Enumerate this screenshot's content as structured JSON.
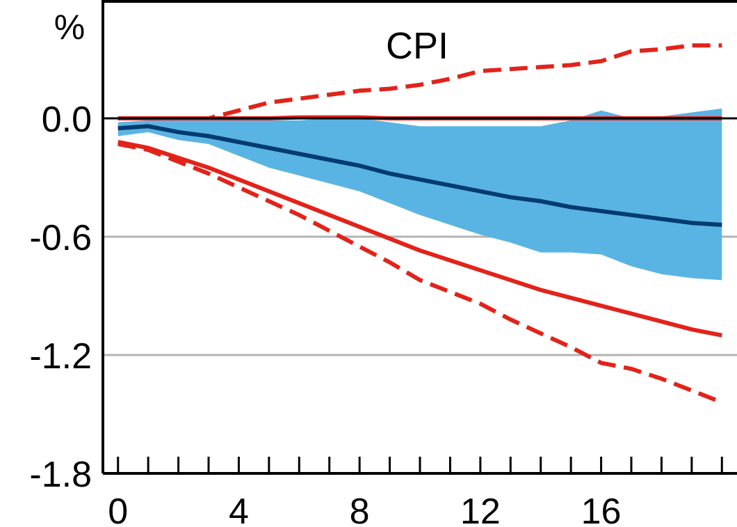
{
  "chart_data": {
    "type": "line",
    "title": "CPI",
    "unit": "%",
    "xlabel": "",
    "ylabel": "",
    "x": [
      0,
      1,
      2,
      3,
      4,
      5,
      6,
      7,
      8,
      9,
      10,
      11,
      12,
      13,
      14,
      15,
      16,
      17,
      18,
      19,
      20
    ],
    "xlim": [
      -0.5,
      20.5
    ],
    "ylim": [
      -1.8,
      0.6
    ],
    "x_ticks": [
      0,
      4,
      8,
      12,
      16
    ],
    "x_tick_labels": [
      "0",
      "4",
      "8",
      "12",
      "16"
    ],
    "y_ticks": [
      0.0,
      -0.6,
      -1.2,
      -1.8
    ],
    "y_tick_labels": [
      "0.0",
      "-0.6",
      "-1.2",
      "-1.8"
    ],
    "grid": "horizontal",
    "band": {
      "upper": [
        -0.02,
        -0.01,
        -0.01,
        -0.01,
        -0.01,
        -0.01,
        -0.01,
        0.0,
        0.0,
        -0.02,
        -0.04,
        -0.04,
        -0.04,
        -0.04,
        -0.04,
        -0.01,
        0.04,
        0.0,
        0.01,
        0.03,
        0.05
      ],
      "lower": [
        -0.09,
        -0.07,
        -0.11,
        -0.13,
        -0.19,
        -0.25,
        -0.29,
        -0.33,
        -0.37,
        -0.43,
        -0.49,
        -0.54,
        -0.59,
        -0.63,
        -0.68,
        -0.68,
        -0.69,
        -0.75,
        -0.79,
        -0.81,
        -0.82
      ],
      "color": "#5ab4e3"
    },
    "series": [
      {
        "color": "#003b6f",
        "style": "solid",
        "values": [
          -0.05,
          -0.04,
          -0.07,
          -0.09,
          -0.12,
          -0.15,
          -0.18,
          -0.21,
          -0.24,
          -0.28,
          -0.31,
          -0.34,
          -0.37,
          -0.4,
          -0.42,
          -0.45,
          -0.47,
          -0.49,
          -0.51,
          -0.53,
          -0.54
        ]
      },
      {
        "color": "#e2231a",
        "style": "solid",
        "values": [
          0.0,
          0.0,
          0.0,
          0.0,
          0.0,
          0.0,
          0.005,
          0.005,
          0.005,
          0.0,
          0.0,
          0.0,
          0.0,
          0.0,
          0.0,
          0.0,
          0.0,
          0.0,
          0.0,
          0.0,
          0.0
        ]
      },
      {
        "color": "#e2231a",
        "style": "solid",
        "values": [
          -0.12,
          -0.15,
          -0.2,
          -0.25,
          -0.31,
          -0.37,
          -0.43,
          -0.49,
          -0.55,
          -0.61,
          -0.67,
          -0.72,
          -0.77,
          -0.82,
          -0.87,
          -0.91,
          -0.95,
          -0.99,
          -1.03,
          -1.07,
          -1.1
        ]
      },
      {
        "color": "#e2231a",
        "style": "dashed",
        "values": [
          0.0,
          0.0,
          0.0,
          0.0,
          0.04,
          0.08,
          0.1,
          0.12,
          0.14,
          0.15,
          0.17,
          0.2,
          0.24,
          0.25,
          0.26,
          0.27,
          0.29,
          0.34,
          0.35,
          0.37,
          0.37
        ]
      },
      {
        "color": "#e2231a",
        "style": "dashed",
        "values": [
          -0.13,
          -0.16,
          -0.22,
          -0.28,
          -0.35,
          -0.42,
          -0.49,
          -0.57,
          -0.65,
          -0.73,
          -0.82,
          -0.88,
          -0.94,
          -1.02,
          -1.09,
          -1.16,
          -1.24,
          -1.27,
          -1.32,
          -1.38,
          -1.44
        ]
      }
    ]
  }
}
